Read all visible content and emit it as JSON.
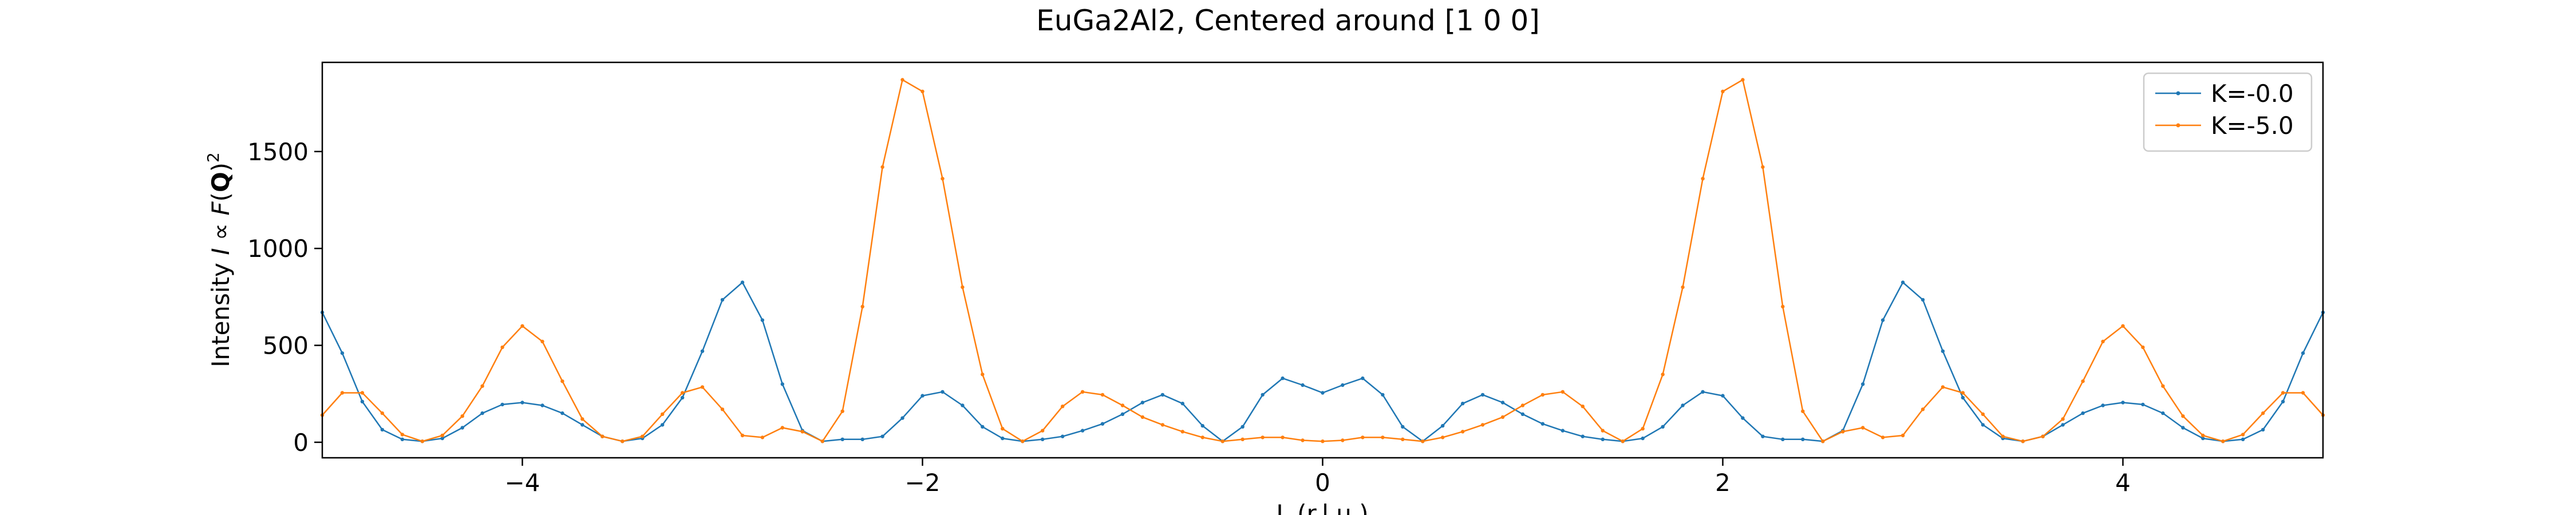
{
  "chart_data": {
    "type": "line",
    "title": "EuGa2Al2, Centered around [1 0 0]",
    "xlabel": "L (r.l.u.)",
    "ylabel": "Intensity I ∝ F(Q)²",
    "ylabel_parts": {
      "lead": "Intensity ",
      "i": "I",
      "prop": " ∝ ",
      "f": "F",
      "open": "(",
      "q": "Q",
      "close": ")",
      "sq": "2"
    },
    "xlim": [
      -5,
      5
    ],
    "ylim": [
      -80,
      1960
    ],
    "xticks": [
      -4,
      -2,
      0,
      2,
      4
    ],
    "xtick_labels": [
      "−4",
      "−2",
      "0",
      "2",
      "4"
    ],
    "yticks": [
      0,
      500,
      1000,
      1500
    ],
    "ytick_labels": [
      "0",
      "500",
      "1000",
      "1500"
    ],
    "grid": false,
    "legend_position": "upper right",
    "x": [
      -5.0,
      -4.9,
      -4.8,
      -4.7,
      -4.6,
      -4.5,
      -4.4,
      -4.3,
      -4.2,
      -4.1,
      -4.0,
      -3.9,
      -3.8,
      -3.7,
      -3.6,
      -3.5,
      -3.4,
      -3.3,
      -3.2,
      -3.1,
      -3.0,
      -2.9,
      -2.8,
      -2.7,
      -2.6,
      -2.5,
      -2.4,
      -2.3,
      -2.2,
      -2.1,
      -2.0,
      -1.9,
      -1.8,
      -1.7,
      -1.6,
      -1.5,
      -1.4,
      -1.3,
      -1.2,
      -1.1,
      -1.0,
      -0.9,
      -0.8,
      -0.7,
      -0.6,
      -0.5,
      -0.4,
      -0.3,
      -0.2,
      -0.1,
      0.0,
      0.1,
      0.2,
      0.3,
      0.4,
      0.5,
      0.6,
      0.7,
      0.8,
      0.9,
      1.0,
      1.1,
      1.2,
      1.3,
      1.4,
      1.5,
      1.6,
      1.7,
      1.8,
      1.9,
      2.0,
      2.1,
      2.2,
      2.3,
      2.4,
      2.5,
      2.6,
      2.7,
      2.8,
      2.9,
      3.0,
      3.1,
      3.2,
      3.3,
      3.4,
      3.5,
      3.6,
      3.7,
      3.8,
      3.9,
      4.0,
      4.1,
      4.2,
      4.3,
      4.4,
      4.5,
      4.6,
      4.7,
      4.8,
      4.9,
      5.0
    ],
    "series": [
      {
        "name": "K=-0.0",
        "color": "#1f77b4",
        "values": [
          670,
          460,
          210,
          65,
          15,
          5,
          20,
          75,
          150,
          195,
          205,
          190,
          150,
          90,
          30,
          5,
          20,
          90,
          230,
          470,
          735,
          825,
          630,
          300,
          60,
          5,
          15,
          15,
          30,
          125,
          240,
          260,
          190,
          80,
          20,
          5,
          15,
          30,
          60,
          95,
          145,
          205,
          245,
          200,
          85,
          5,
          80,
          245,
          330,
          295,
          255,
          295,
          330,
          245,
          80,
          5,
          85,
          200,
          245,
          205,
          145,
          95,
          60,
          30,
          15,
          5,
          20,
          80,
          190,
          260,
          240,
          125,
          30,
          15,
          15,
          5,
          60,
          300,
          630,
          825,
          735,
          470,
          230,
          90,
          20,
          5,
          30,
          90,
          150,
          190,
          205,
          195,
          150,
          75,
          20,
          5,
          15,
          65,
          210,
          460,
          670
        ]
      },
      {
        "name": "K=-5.0",
        "color": "#ff7f0e",
        "values": [
          140,
          255,
          255,
          150,
          40,
          5,
          35,
          135,
          290,
          490,
          600,
          520,
          315,
          120,
          30,
          5,
          30,
          145,
          255,
          285,
          170,
          35,
          25,
          75,
          55,
          5,
          160,
          700,
          1420,
          1870,
          1810,
          1360,
          800,
          350,
          70,
          5,
          60,
          185,
          260,
          245,
          190,
          130,
          90,
          55,
          25,
          5,
          15,
          25,
          25,
          10,
          5,
          10,
          25,
          25,
          15,
          5,
          25,
          55,
          90,
          130,
          190,
          245,
          260,
          185,
          60,
          5,
          70,
          350,
          800,
          1360,
          1810,
          1870,
          1420,
          700,
          160,
          5,
          55,
          75,
          25,
          35,
          170,
          285,
          255,
          145,
          30,
          5,
          30,
          120,
          315,
          520,
          600,
          490,
          290,
          135,
          35,
          5,
          40,
          150,
          255,
          255,
          140
        ]
      }
    ]
  }
}
